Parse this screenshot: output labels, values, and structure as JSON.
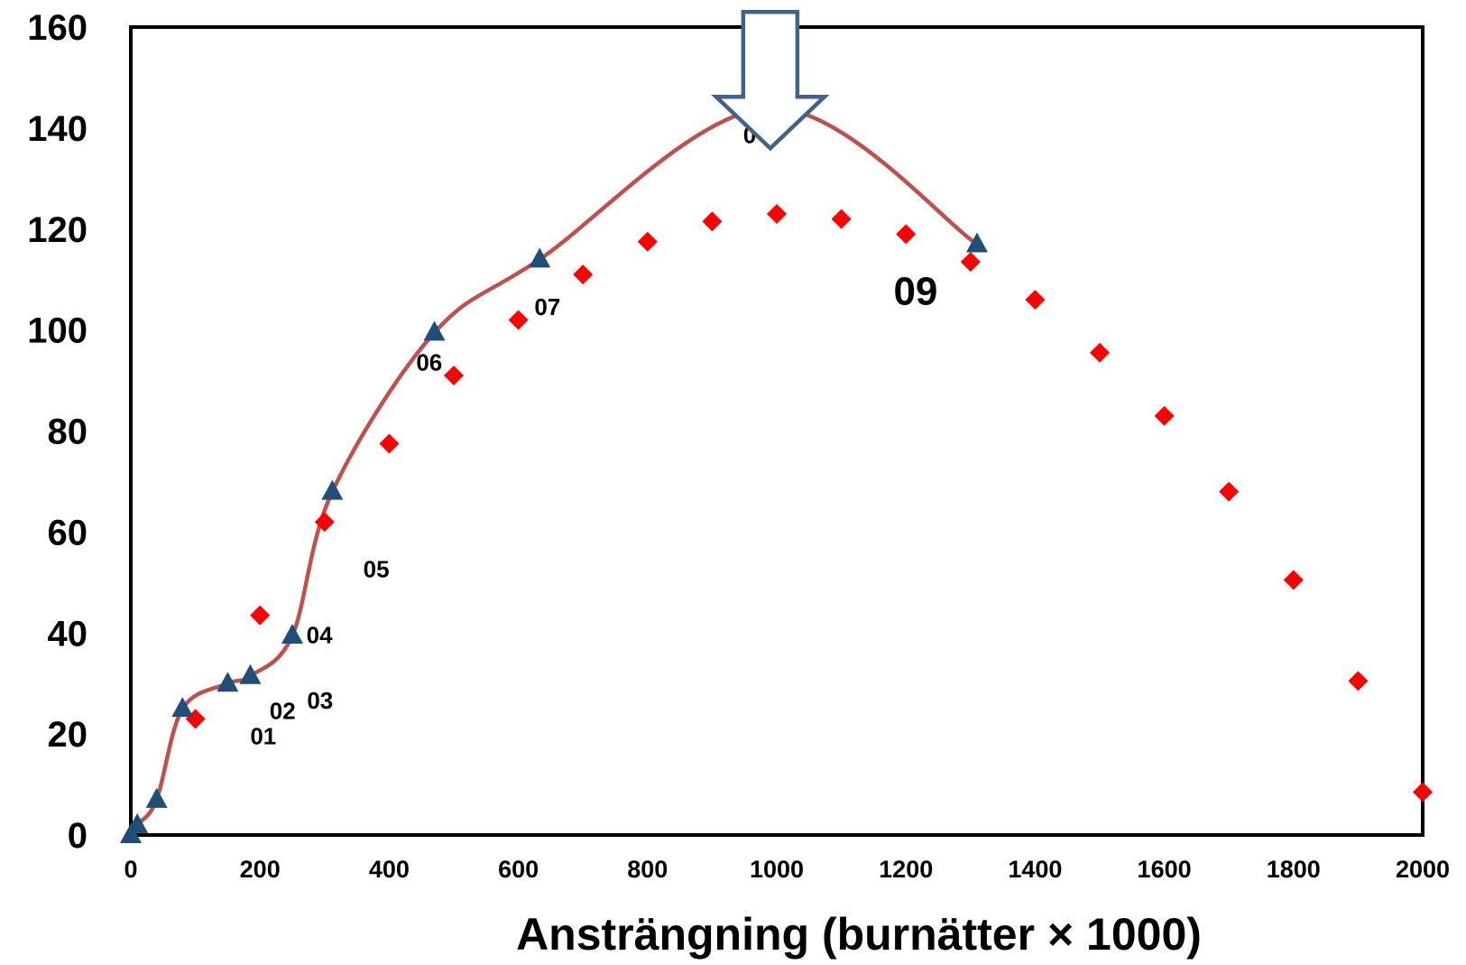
{
  "chart_data": {
    "type": "scatter",
    "xlabel": "Ansträngning (burnätter × 1000)",
    "ylabel": "",
    "xlim": [
      0,
      2000
    ],
    "ylim": [
      0,
      160
    ],
    "xticks": [
      "0",
      "200",
      "400",
      "600",
      "800",
      "1000",
      "1200",
      "1400",
      "1600",
      "1800",
      "2000"
    ],
    "yticks": [
      "0",
      "20",
      "40",
      "60",
      "80",
      "100",
      "120",
      "140",
      "160"
    ],
    "grid": false,
    "legend": "none",
    "series": [
      {
        "marker": "diamond",
        "color": "#ff0000",
        "x": [
          100,
          200,
          300,
          400,
          500,
          600,
          700,
          800,
          900,
          1000,
          1100,
          1200,
          1300,
          1400,
          1500,
          1600,
          1700,
          1800,
          1900,
          2000
        ],
        "y": [
          23,
          43.5,
          62,
          77.5,
          91,
          102,
          111,
          117.5,
          121.5,
          123,
          122,
          119,
          113.5,
          106,
          95.5,
          83,
          68,
          50.5,
          30.5,
          8.5
        ]
      },
      {
        "marker": "triangle",
        "color": "#1f4e79",
        "line_color": "#c0504d",
        "x": [
          0,
          10,
          40,
          80,
          150,
          185,
          250,
          312,
          470,
          633,
          990,
          1310
        ],
        "y": [
          0,
          2,
          7,
          25,
          30,
          31.5,
          39.5,
          68,
          99.5,
          114,
          144,
          117
        ]
      }
    ],
    "annotations": [
      {
        "text": "01",
        "x": 205,
        "y": 18
      },
      {
        "text": "02",
        "x": 235,
        "y": 23
      },
      {
        "text": "03",
        "x": 293,
        "y": 25
      },
      {
        "text": "04",
        "x": 292,
        "y": 38
      },
      {
        "text": "05",
        "x": 380,
        "y": 51
      },
      {
        "text": "06",
        "x": 462,
        "y": 92
      },
      {
        "text": "07",
        "x": 645,
        "y": 103
      },
      {
        "text": "0",
        "x": 958,
        "y": 137
      },
      {
        "text": "09",
        "x": 1215,
        "y": 105,
        "size": "large"
      }
    ],
    "arrow": {
      "x": 990,
      "y_tip": 136,
      "y_top": 163,
      "style": "outline",
      "color": "#41638a"
    }
  }
}
